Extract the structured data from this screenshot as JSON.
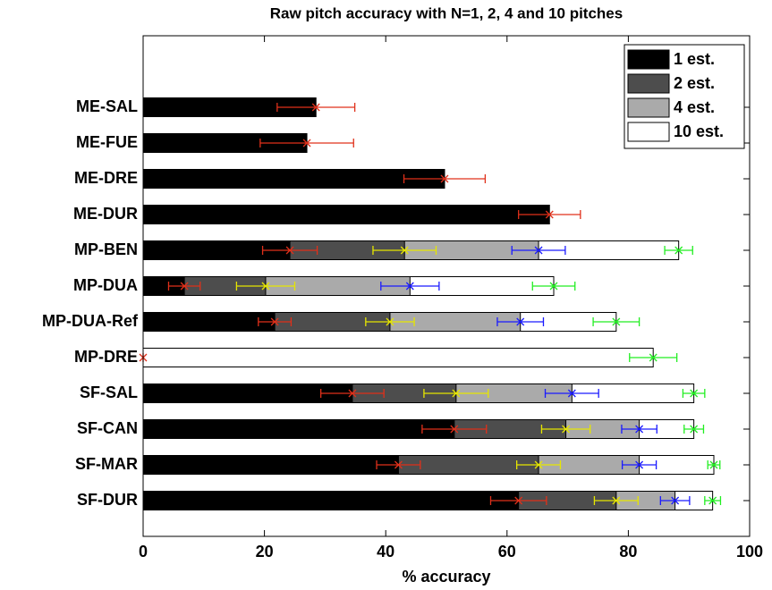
{
  "chart_data": {
    "type": "barh",
    "title": "Raw pitch accuracy with N=1, 2, 4 and 10 pitches",
    "x_label": "% accuracy",
    "categories": [
      "ME-SAL",
      "ME-FUE",
      "ME-DRE",
      "ME-DUR",
      "MP-BEN",
      "MP-DUA",
      "MP-DUA-Ref",
      "MP-DRE",
      "SF-SAL",
      "SF-CAN",
      "SF-MAR",
      "SF-DUR"
    ],
    "series": [
      {
        "name": "1 est.",
        "color": "#000000",
        "error_color": "#e0301a",
        "values": [
          28.5,
          27,
          49.7,
          67,
          24.2,
          6.8,
          21.7,
          0,
          34.5,
          51.3,
          42.1,
          61.9
        ],
        "errors": [
          6.4,
          7.7,
          6.7,
          5.1,
          4.5,
          2.6,
          2.7,
          0,
          5.2,
          5.3,
          3.6,
          4.6
        ]
      },
      {
        "name": "2 est.",
        "color": "#4d4d4d",
        "error_color": "#e6e600",
        "values": [
          null,
          null,
          null,
          null,
          43.1,
          20.2,
          40.7,
          null,
          51.6,
          69.7,
          65.2,
          78
        ],
        "errors": [
          null,
          null,
          null,
          null,
          5.2,
          4.8,
          4,
          null,
          5.3,
          4,
          3.6,
          3.6
        ]
      },
      {
        "name": "4 est.",
        "color": "#aaaaaa",
        "error_color": "#1a1aff",
        "values": [
          null,
          null,
          null,
          null,
          65.2,
          44,
          62.2,
          null,
          70.7,
          81.8,
          81.8,
          87.7
        ],
        "errors": [
          null,
          null,
          null,
          null,
          4.4,
          4.8,
          3.8,
          null,
          4.4,
          2.9,
          2.8,
          2.4
        ]
      },
      {
        "name": "10 est.",
        "color": "#ffffff",
        "error_color": "#22ee22",
        "values": [
          null,
          null,
          null,
          null,
          88.3,
          67.7,
          78,
          84.1,
          90.8,
          90.8,
          94.1,
          93.9
        ],
        "errors": [
          null,
          null,
          null,
          null,
          2.3,
          3.5,
          3.8,
          3.9,
          1.8,
          1.6,
          1,
          1.3
        ]
      }
    ],
    "xlim": [
      0,
      100
    ],
    "xticks": [
      0,
      20,
      40,
      60,
      80,
      100
    ],
    "legend": "upper right"
  }
}
